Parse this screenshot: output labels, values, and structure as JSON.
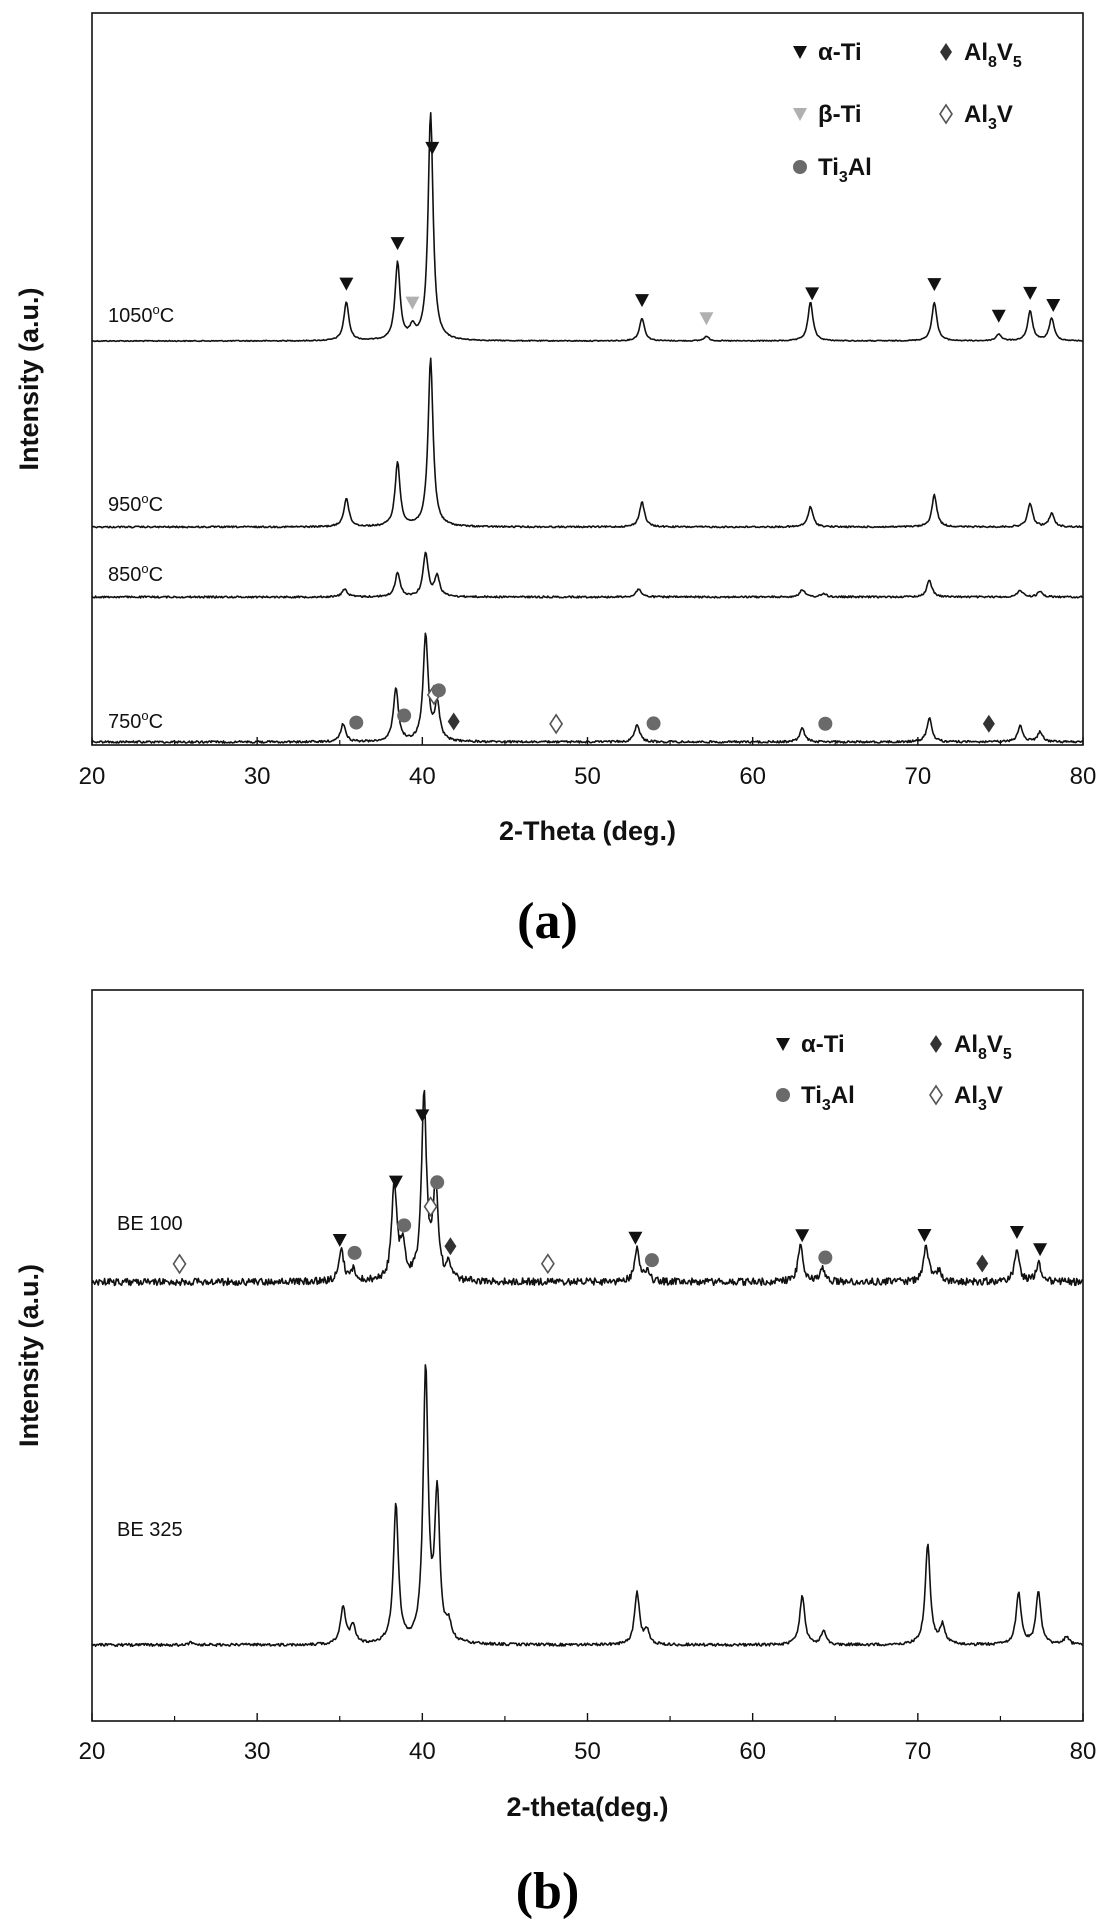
{
  "chart_data": [
    {
      "panel": "(a)",
      "type": "line",
      "xlabel": "2-Theta (deg.)",
      "ylabel": "Intensity (a.u.)",
      "xlim": [
        20,
        80
      ],
      "xticks": [
        "20",
        "30",
        "40",
        "50",
        "60",
        "70",
        "80"
      ],
      "grid": false,
      "legend_position": "top-right",
      "legend": [
        {
          "symbol": "triangle-down",
          "text": "α-Ti",
          "color": "#111111"
        },
        {
          "symbol": "diamond-filled",
          "text": "Al8V5",
          "color": "#333333"
        },
        {
          "symbol": "triangle-down",
          "text": "β-Ti",
          "color": "#b0b0b0"
        },
        {
          "symbol": "diamond-open",
          "text": "Al3V",
          "color": "#555555"
        },
        {
          "symbol": "circle",
          "text": "Ti3Al",
          "color": "#6a6a6a"
        }
      ],
      "series": [
        {
          "name": "1050°C",
          "label_parts": [
            "1050",
            "o",
            "C"
          ],
          "peaks": [
            {
              "x": 35.4,
              "h": 0.17
            },
            {
              "x": 38.5,
              "h": 0.34
            },
            {
              "x": 39.4,
              "h": 0.05
            },
            {
              "x": 40.5,
              "h": 1.0
            },
            {
              "x": 53.3,
              "h": 0.1
            },
            {
              "x": 57.2,
              "h": 0.02
            },
            {
              "x": 63.5,
              "h": 0.17
            },
            {
              "x": 71.0,
              "h": 0.17
            },
            {
              "x": 74.9,
              "h": 0.03
            },
            {
              "x": 76.8,
              "h": 0.13
            },
            {
              "x": 78.1,
              "h": 0.1
            }
          ],
          "markers": [
            {
              "phase": "α-Ti",
              "x": 35.4
            },
            {
              "phase": "α-Ti",
              "x": 38.5
            },
            {
              "phase": "β-Ti",
              "x": 39.4
            },
            {
              "phase": "α-Ti",
              "x": 40.6
            },
            {
              "phase": "α-Ti",
              "x": 53.3
            },
            {
              "phase": "β-Ti",
              "x": 57.2
            },
            {
              "phase": "α-Ti",
              "x": 63.6
            },
            {
              "phase": "α-Ti",
              "x": 71.0
            },
            {
              "phase": "α-Ti",
              "x": 74.9
            },
            {
              "phase": "α-Ti",
              "x": 76.8
            },
            {
              "phase": "α-Ti",
              "x": 78.2
            }
          ]
        },
        {
          "name": "950°C",
          "label_parts": [
            "950",
            "o",
            "C"
          ],
          "peaks": [
            {
              "x": 35.4,
              "h": 0.17
            },
            {
              "x": 38.5,
              "h": 0.38
            },
            {
              "x": 40.5,
              "h": 1.0
            },
            {
              "x": 53.3,
              "h": 0.15
            },
            {
              "x": 63.5,
              "h": 0.12
            },
            {
              "x": 71.0,
              "h": 0.19
            },
            {
              "x": 76.8,
              "h": 0.14
            },
            {
              "x": 78.1,
              "h": 0.08
            }
          ],
          "markers": []
        },
        {
          "name": "850°C",
          "label_parts": [
            "850",
            "o",
            "C"
          ],
          "peaks": [
            {
              "x": 35.3,
              "h": 0.12
            },
            {
              "x": 38.5,
              "h": 0.35
            },
            {
              "x": 40.2,
              "h": 0.65
            },
            {
              "x": 40.9,
              "h": 0.3
            },
            {
              "x": 53.1,
              "h": 0.12
            },
            {
              "x": 63.0,
              "h": 0.11
            },
            {
              "x": 64.3,
              "h": 0.05
            },
            {
              "x": 70.7,
              "h": 0.25
            },
            {
              "x": 76.2,
              "h": 0.1
            },
            {
              "x": 77.4,
              "h": 0.08
            }
          ],
          "markers": []
        },
        {
          "name": "750°C",
          "label_parts": [
            "750",
            "o",
            "C"
          ],
          "peaks": [
            {
              "x": 35.2,
              "h": 0.12
            },
            {
              "x": 38.4,
              "h": 0.36
            },
            {
              "x": 40.2,
              "h": 0.72
            },
            {
              "x": 40.9,
              "h": 0.25
            },
            {
              "x": 53.0,
              "h": 0.12
            },
            {
              "x": 63.0,
              "h": 0.09
            },
            {
              "x": 70.7,
              "h": 0.16
            },
            {
              "x": 76.2,
              "h": 0.11
            },
            {
              "x": 77.4,
              "h": 0.07
            }
          ],
          "markers": [
            {
              "phase": "Ti3Al",
              "x": 36.0
            },
            {
              "phase": "Ti3Al",
              "x": 38.9
            },
            {
              "phase": "Al3V",
              "x": 40.7
            },
            {
              "phase": "Ti3Al",
              "x": 41.0
            },
            {
              "phase": "Al8V5",
              "x": 41.9
            },
            {
              "phase": "Al3V",
              "x": 48.1
            },
            {
              "phase": "Ti3Al",
              "x": 54.0
            },
            {
              "phase": "Ti3Al",
              "x": 64.4
            },
            {
              "phase": "Al8V5",
              "x": 74.3
            }
          ]
        }
      ]
    },
    {
      "panel": "(b)",
      "type": "line",
      "xlabel": "2-theta(deg.)",
      "ylabel": "Intensity (a.u.)",
      "xlim": [
        20,
        80
      ],
      "xticks": [
        "20",
        "30",
        "40",
        "50",
        "60",
        "70",
        "80"
      ],
      "grid": false,
      "legend_position": "top-right",
      "legend": [
        {
          "symbol": "triangle-down",
          "text": "α-Ti",
          "color": "#111111"
        },
        {
          "symbol": "diamond-filled",
          "text": "Al8V5",
          "color": "#333333"
        },
        {
          "symbol": "circle",
          "text": "Ti3Al",
          "color": "#6a6a6a"
        },
        {
          "symbol": "diamond-open",
          "text": "Al3V",
          "color": "#555555"
        }
      ],
      "series": [
        {
          "name": "BE 100",
          "label_parts": [
            "BE 100"
          ],
          "peaks": [
            {
              "x": 35.1,
              "h": 0.16
            },
            {
              "x": 35.8,
              "h": 0.06
            },
            {
              "x": 38.3,
              "h": 0.52
            },
            {
              "x": 38.8,
              "h": 0.18
            },
            {
              "x": 40.1,
              "h": 1.0
            },
            {
              "x": 40.8,
              "h": 0.5
            },
            {
              "x": 41.6,
              "h": 0.08
            },
            {
              "x": 53.0,
              "h": 0.18
            },
            {
              "x": 53.6,
              "h": 0.05
            },
            {
              "x": 62.9,
              "h": 0.2
            },
            {
              "x": 64.2,
              "h": 0.07
            },
            {
              "x": 70.5,
              "h": 0.2
            },
            {
              "x": 71.3,
              "h": 0.06
            },
            {
              "x": 76.0,
              "h": 0.17
            },
            {
              "x": 77.3,
              "h": 0.1
            }
          ],
          "markers": [
            {
              "phase": "Al3V",
              "x": 25.3
            },
            {
              "phase": "α-Ti",
              "x": 35.0
            },
            {
              "phase": "Ti3Al",
              "x": 35.9
            },
            {
              "phase": "α-Ti",
              "x": 38.4
            },
            {
              "phase": "Ti3Al",
              "x": 38.9
            },
            {
              "phase": "α-Ti",
              "x": 40.0
            },
            {
              "phase": "Al3V",
              "x": 40.5
            },
            {
              "phase": "Ti3Al",
              "x": 40.9
            },
            {
              "phase": "Al8V5",
              "x": 41.7
            },
            {
              "phase": "Al3V",
              "x": 47.6
            },
            {
              "phase": "α-Ti",
              "x": 52.9
            },
            {
              "phase": "Ti3Al",
              "x": 53.9
            },
            {
              "phase": "α-Ti",
              "x": 63.0
            },
            {
              "phase": "Ti3Al",
              "x": 64.4
            },
            {
              "phase": "α-Ti",
              "x": 70.4
            },
            {
              "phase": "Al8V5",
              "x": 73.9
            },
            {
              "phase": "α-Ti",
              "x": 76.0
            },
            {
              "phase": "α-Ti",
              "x": 77.4
            }
          ]
        },
        {
          "name": "BE 325",
          "label_parts": [
            "BE 325"
          ],
          "peaks": [
            {
              "x": 26.0,
              "h": 0.01
            },
            {
              "x": 35.2,
              "h": 0.14
            },
            {
              "x": 35.8,
              "h": 0.07
            },
            {
              "x": 38.4,
              "h": 0.51
            },
            {
              "x": 40.2,
              "h": 1.0
            },
            {
              "x": 40.9,
              "h": 0.54
            },
            {
              "x": 41.6,
              "h": 0.06
            },
            {
              "x": 53.0,
              "h": 0.19
            },
            {
              "x": 53.6,
              "h": 0.05
            },
            {
              "x": 63.0,
              "h": 0.18
            },
            {
              "x": 64.3,
              "h": 0.05
            },
            {
              "x": 70.6,
              "h": 0.37
            },
            {
              "x": 71.5,
              "h": 0.07
            },
            {
              "x": 76.1,
              "h": 0.19
            },
            {
              "x": 77.3,
              "h": 0.19
            },
            {
              "x": 79.0,
              "h": 0.03
            }
          ],
          "markers": []
        }
      ]
    }
  ]
}
